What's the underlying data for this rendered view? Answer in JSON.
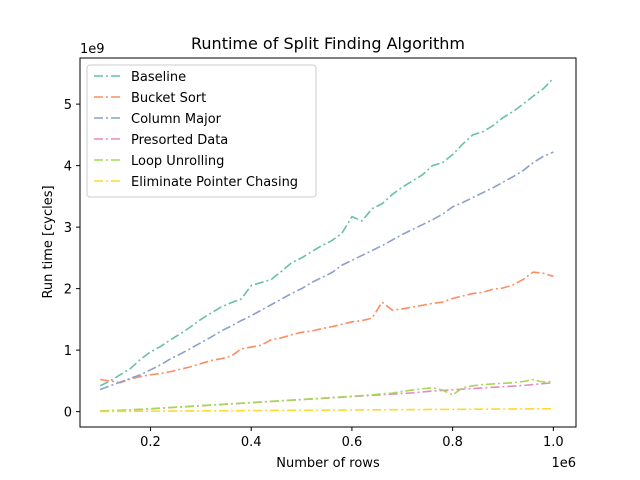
{
  "chart_data": {
    "type": "line",
    "title": "Runtime of Split Finding Algorithm",
    "xlabel": "Number of rows",
    "ylabel": "Run time [cycles]",
    "x_offset_label": "1e6",
    "y_offset_label": "1e9",
    "x_scale": 1000000,
    "y_scale": 1000000000,
    "xlim": [
      60000,
      1045000
    ],
    "ylim": [
      -250000000,
      5750000000
    ],
    "x_ticks": [
      200000,
      400000,
      600000,
      800000,
      1000000
    ],
    "x_tick_labels": [
      "0.2",
      "0.4",
      "0.6",
      "0.8",
      "1.0"
    ],
    "y_ticks": [
      0,
      1000000000,
      2000000000,
      3000000000,
      4000000000,
      5000000000
    ],
    "y_tick_labels": [
      "0",
      "1",
      "2",
      "3",
      "4",
      "5"
    ],
    "legend_position": "top-left",
    "grid": false,
    "x": [
      100000,
      120000,
      140000,
      160000,
      180000,
      200000,
      220000,
      240000,
      260000,
      280000,
      300000,
      320000,
      340000,
      360000,
      380000,
      400000,
      420000,
      440000,
      460000,
      480000,
      500000,
      520000,
      540000,
      560000,
      580000,
      600000,
      620000,
      640000,
      660000,
      680000,
      700000,
      720000,
      740000,
      760000,
      780000,
      800000,
      820000,
      840000,
      860000,
      880000,
      900000,
      920000,
      940000,
      960000,
      980000,
      1000000
    ],
    "series": [
      {
        "name": "Baseline",
        "color": "#66c2a5",
        "values": [
          420000000,
          500000000,
          600000000,
          700000000,
          850000000,
          970000000,
          1060000000,
          1170000000,
          1270000000,
          1380000000,
          1500000000,
          1600000000,
          1700000000,
          1770000000,
          1830000000,
          2050000000,
          2100000000,
          2150000000,
          2280000000,
          2420000000,
          2500000000,
          2600000000,
          2700000000,
          2780000000,
          2900000000,
          3170000000,
          3100000000,
          3300000000,
          3380000000,
          3530000000,
          3650000000,
          3750000000,
          3850000000,
          4000000000,
          4050000000,
          4180000000,
          4350000000,
          4500000000,
          4550000000,
          4650000000,
          4780000000,
          4880000000,
          5000000000,
          5130000000,
          5250000000,
          5420000000
        ]
      },
      {
        "name": "Bucket Sort",
        "color": "#fc8d62",
        "values": [
          520000000,
          500000000,
          470000000,
          530000000,
          570000000,
          600000000,
          620000000,
          650000000,
          690000000,
          730000000,
          780000000,
          830000000,
          860000000,
          900000000,
          1020000000,
          1050000000,
          1080000000,
          1170000000,
          1200000000,
          1250000000,
          1290000000,
          1310000000,
          1350000000,
          1380000000,
          1420000000,
          1460000000,
          1480000000,
          1520000000,
          1780000000,
          1650000000,
          1670000000,
          1700000000,
          1730000000,
          1760000000,
          1780000000,
          1840000000,
          1880000000,
          1920000000,
          1940000000,
          1990000000,
          2010000000,
          2060000000,
          2150000000,
          2270000000,
          2250000000,
          2200000000
        ]
      },
      {
        "name": "Column Major",
        "color": "#8da0cb",
        "values": [
          360000000,
          420000000,
          480000000,
          540000000,
          600000000,
          680000000,
          760000000,
          860000000,
          940000000,
          1030000000,
          1120000000,
          1210000000,
          1310000000,
          1390000000,
          1480000000,
          1560000000,
          1650000000,
          1740000000,
          1830000000,
          1920000000,
          2000000000,
          2100000000,
          2180000000,
          2260000000,
          2380000000,
          2460000000,
          2540000000,
          2620000000,
          2700000000,
          2790000000,
          2880000000,
          2960000000,
          3040000000,
          3120000000,
          3210000000,
          3330000000,
          3400000000,
          3480000000,
          3560000000,
          3640000000,
          3730000000,
          3820000000,
          3920000000,
          4050000000,
          4150000000,
          4220000000
        ]
      },
      {
        "name": "Presorted Data",
        "color": "#e78ac3",
        "values": [
          10000000,
          15000000,
          20000000,
          28000000,
          35000000,
          45000000,
          55000000,
          65000000,
          75000000,
          85000000,
          95000000,
          105000000,
          115000000,
          125000000,
          135000000,
          145000000,
          155000000,
          165000000,
          175000000,
          185000000,
          195000000,
          205000000,
          215000000,
          225000000,
          235000000,
          245000000,
          255000000,
          265000000,
          275000000,
          285000000,
          295000000,
          305000000,
          320000000,
          335000000,
          345000000,
          355000000,
          365000000,
          375000000,
          385000000,
          395000000,
          405000000,
          415000000,
          425000000,
          440000000,
          455000000,
          470000000
        ]
      },
      {
        "name": "Loop Unrolling",
        "color": "#a6d854",
        "values": [
          10000000,
          15000000,
          22000000,
          30000000,
          38000000,
          48000000,
          58000000,
          68000000,
          78000000,
          88000000,
          98000000,
          108000000,
          118000000,
          128000000,
          138000000,
          148000000,
          158000000,
          168000000,
          178000000,
          188000000,
          198000000,
          208000000,
          218000000,
          228000000,
          240000000,
          250000000,
          262000000,
          272000000,
          290000000,
          300000000,
          330000000,
          350000000,
          370000000,
          390000000,
          350000000,
          270000000,
          390000000,
          420000000,
          440000000,
          450000000,
          460000000,
          470000000,
          490000000,
          520000000,
          480000000,
          490000000
        ]
      },
      {
        "name": "Eliminate Pointer Chasing",
        "color": "#ffd92f",
        "values": [
          2000000,
          3000000,
          4000000,
          5000000,
          6000000,
          7000000,
          8000000,
          9000000,
          10000000,
          11000000,
          12000000,
          13000000,
          14000000,
          15000000,
          16000000,
          17000000,
          18000000,
          19000000,
          20000000,
          21000000,
          22000000,
          23000000,
          24000000,
          25000000,
          26000000,
          27000000,
          28000000,
          29000000,
          30000000,
          31000000,
          32000000,
          33000000,
          34000000,
          35000000,
          36000000,
          37000000,
          38000000,
          39000000,
          40000000,
          41000000,
          42000000,
          43000000,
          44000000,
          45000000,
          46000000,
          47000000
        ]
      }
    ]
  }
}
